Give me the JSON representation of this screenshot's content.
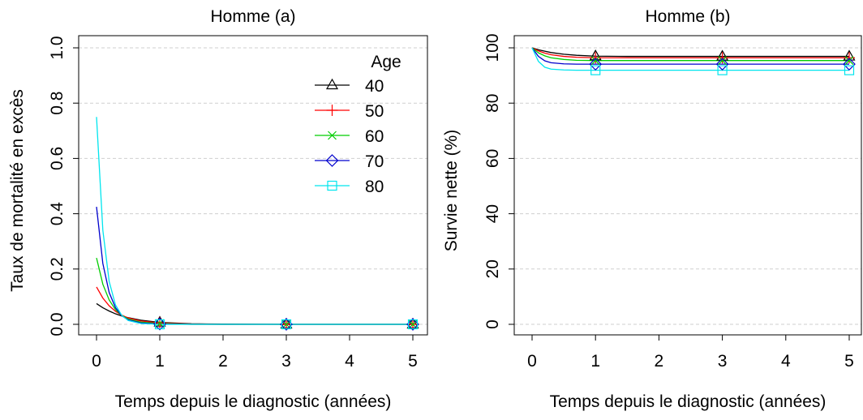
{
  "chart_data": [
    {
      "type": "line",
      "title": "Homme (a)",
      "xlabel": "Temps depuis le diagnostic (années)",
      "ylabel": "Taux de mortalité en excès",
      "xlim": [
        0,
        5
      ],
      "ylim": [
        0,
        1.0
      ],
      "xticks": [
        "0",
        "1",
        "2",
        "3",
        "4",
        "5"
      ],
      "yticks": [
        "0.0",
        "0.2",
        "0.4",
        "0.6",
        "0.8",
        "1.0"
      ],
      "grid": "horizontal dashed",
      "legend": {
        "title": "Age",
        "position": "top-right"
      },
      "marker_x": [
        1,
        3,
        5
      ],
      "series": [
        {
          "name": "40",
          "color": "#000000",
          "marker": "triangle",
          "x": [
            0,
            0.1,
            0.2,
            0.3,
            0.4,
            0.5,
            0.7,
            1,
            1.5,
            2,
            3,
            4,
            5
          ],
          "y": [
            0.075,
            0.06,
            0.048,
            0.038,
            0.03,
            0.024,
            0.015,
            0.007,
            0.002,
            0.001,
            0.0,
            0.0,
            0.0
          ]
        },
        {
          "name": "50",
          "color": "#ff0000",
          "marker": "plus",
          "x": [
            0,
            0.1,
            0.2,
            0.3,
            0.4,
            0.5,
            0.7,
            1,
            1.5,
            2,
            3,
            4,
            5
          ],
          "y": [
            0.135,
            0.095,
            0.067,
            0.047,
            0.033,
            0.023,
            0.012,
            0.005,
            0.001,
            0.0,
            0.0,
            0.0,
            0.0
          ]
        },
        {
          "name": "60",
          "color": "#00cd00",
          "marker": "cross",
          "x": [
            0,
            0.1,
            0.2,
            0.3,
            0.4,
            0.5,
            0.7,
            1,
            1.5,
            2,
            3,
            4,
            5
          ],
          "y": [
            0.24,
            0.145,
            0.088,
            0.053,
            0.032,
            0.019,
            0.008,
            0.003,
            0.0,
            0.0,
            0.0,
            0.0,
            0.0
          ]
        },
        {
          "name": "70",
          "color": "#0000cd",
          "marker": "diamond",
          "x": [
            0,
            0.1,
            0.2,
            0.3,
            0.4,
            0.5,
            0.7,
            1,
            1.5,
            2,
            3,
            4,
            5
          ],
          "y": [
            0.425,
            0.22,
            0.115,
            0.06,
            0.031,
            0.016,
            0.005,
            0.001,
            0.0,
            0.0,
            0.0,
            0.0,
            0.0
          ]
        },
        {
          "name": "80",
          "color": "#00e5ee",
          "marker": "square",
          "x": [
            0,
            0.1,
            0.2,
            0.3,
            0.4,
            0.5,
            0.7,
            1,
            1.5,
            2,
            3,
            4,
            5
          ],
          "y": [
            0.75,
            0.34,
            0.155,
            0.07,
            0.032,
            0.014,
            0.003,
            0.0,
            0.0,
            0.0,
            0.0,
            0.0,
            0.0
          ]
        }
      ]
    },
    {
      "type": "line",
      "title": "Homme (b)",
      "xlabel": "Temps depuis le diagnostic (années)",
      "ylabel": "Survie nette (%)",
      "xlim": [
        0,
        5
      ],
      "ylim": [
        0,
        100
      ],
      "xticks": [
        "0",
        "1",
        "2",
        "3",
        "4",
        "5"
      ],
      "yticks": [
        "0",
        "20",
        "40",
        "60",
        "80",
        "100"
      ],
      "grid": "horizontal dashed",
      "marker_x": [
        1,
        3,
        5
      ],
      "series": [
        {
          "name": "40",
          "color": "#000000",
          "marker": "triangle",
          "x": [
            0,
            0.1,
            0.2,
            0.3,
            0.5,
            0.7,
            1,
            1.5,
            2,
            3,
            4,
            5
          ],
          "y": [
            100,
            99.3,
            98.8,
            98.3,
            97.7,
            97.3,
            97.0,
            96.9,
            96.9,
            96.9,
            96.9,
            96.9
          ]
        },
        {
          "name": "50",
          "color": "#ff0000",
          "marker": "plus",
          "x": [
            0,
            0.1,
            0.2,
            0.3,
            0.5,
            0.7,
            1,
            1.5,
            2,
            3,
            4,
            5
          ],
          "y": [
            100,
            98.9,
            98.1,
            97.5,
            96.9,
            96.6,
            96.4,
            96.4,
            96.4,
            96.4,
            96.4,
            96.4
          ]
        },
        {
          "name": "60",
          "color": "#00cd00",
          "marker": "cross",
          "x": [
            0,
            0.1,
            0.2,
            0.3,
            0.5,
            0.7,
            1,
            1.5,
            2,
            3,
            4,
            5
          ],
          "y": [
            100,
            98.2,
            97.1,
            96.4,
            95.8,
            95.5,
            95.4,
            95.4,
            95.4,
            95.4,
            95.4,
            95.4
          ]
        },
        {
          "name": "70",
          "color": "#0000cd",
          "marker": "diamond",
          "x": [
            0,
            0.1,
            0.2,
            0.3,
            0.5,
            0.7,
            1,
            1.5,
            2,
            3,
            4,
            5
          ],
          "y": [
            100,
            96.9,
            95.3,
            94.6,
            94.2,
            94.1,
            94.1,
            94.1,
            94.1,
            94.1,
            94.1,
            94.1
          ]
        },
        {
          "name": "80",
          "color": "#00e5ee",
          "marker": "square",
          "x": [
            0,
            0.1,
            0.2,
            0.3,
            0.5,
            0.7,
            1,
            1.5,
            2,
            3,
            4,
            5
          ],
          "y": [
            100,
            95.1,
            93.0,
            92.3,
            92.0,
            91.9,
            91.9,
            91.9,
            91.9,
            91.9,
            91.9,
            91.9
          ]
        }
      ]
    }
  ]
}
